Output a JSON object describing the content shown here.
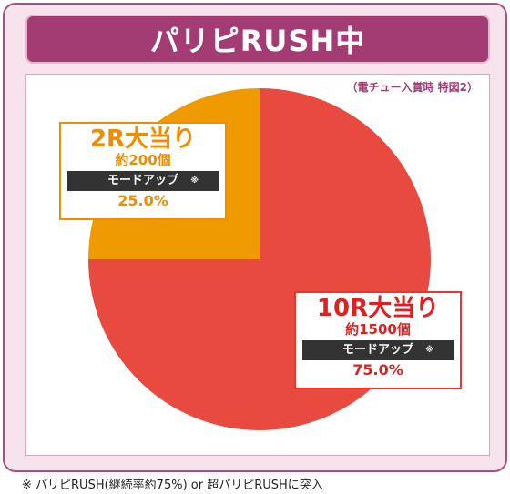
{
  "title": "パリピRUSH中",
  "caption": "（電チュー入賞時 特図2）",
  "footnote": "※ パリピRUSH(継続率約75%) or 超パリピRUSHに突入",
  "colors": {
    "frame_bg": "#f6e3ec",
    "title_bg": "#a23c73",
    "slice_orange": "#ef9a00",
    "slice_red": "#e84a3f",
    "mode_bar": "#333333"
  },
  "chart_data": {
    "type": "pie",
    "slices": [
      {
        "label": "10R大当り",
        "count": "約1500個",
        "mode": "モードアップ",
        "mark": "※",
        "value": 75.0,
        "value_text": "75.0%",
        "color": "#e84a3f"
      },
      {
        "label": "2R大当り",
        "count": "約200個",
        "mode": "モードアップ",
        "mark": "※",
        "value": 25.0,
        "value_text": "25.0%",
        "color": "#ef9a00"
      }
    ]
  }
}
